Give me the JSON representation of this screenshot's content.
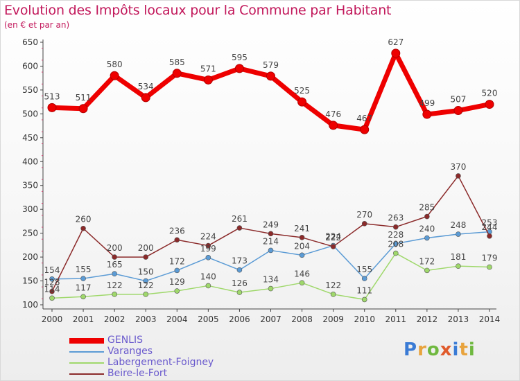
{
  "title": "Evolution des Impôts locaux pour la Commune par Habitant",
  "subtitle": "(en € et par an)",
  "logo": [
    "P",
    "r",
    "o",
    "x",
    "i",
    "t",
    "i"
  ],
  "logo_colors": [
    "#3a7bd5",
    "#e8a33d",
    "#6fb83f",
    "#e05a2b",
    "#3a7bd5",
    "#e8a33d",
    "#6fb83f"
  ],
  "chart_data": {
    "type": "line",
    "x": [
      "2000",
      "2001",
      "2002",
      "2003",
      "2004",
      "2005",
      "2006",
      "2007",
      "2008",
      "2009",
      "2010",
      "2011",
      "2012",
      "2013",
      "2014"
    ],
    "ylim": [
      100,
      650
    ],
    "yticks": [
      100,
      150,
      200,
      250,
      300,
      350,
      400,
      450,
      500,
      550,
      600,
      650
    ],
    "grid": false,
    "legend": "bottom-left",
    "series": [
      {
        "name": "GENLIS",
        "color": "#ee0000",
        "values": [
          513,
          511,
          580,
          534,
          585,
          571,
          595,
          579,
          525,
          476,
          467,
          627,
          499,
          507,
          520
        ],
        "labels": [
          "513",
          "511",
          "580",
          "534",
          "585",
          "571",
          "595",
          "579",
          "525",
          "476",
          "467",
          "627",
          "499",
          "507",
          "520"
        ]
      },
      {
        "name": "Varanges",
        "color": "#5b9bd5",
        "values": [
          154,
          155,
          165,
          150,
          172,
          199,
          173,
          214,
          204,
          224,
          155,
          228,
          240,
          248,
          253
        ],
        "labels": [
          "154",
          "155",
          "165",
          "150",
          "172",
          "199",
          "173",
          "214",
          "204",
          "224",
          "155",
          "228",
          "240",
          "248",
          "253"
        ]
      },
      {
        "name": "Labergement-Foigney",
        "color": "#9fd86b",
        "values": [
          114,
          117,
          122,
          122,
          129,
          140,
          126,
          134,
          146,
          122,
          111,
          208,
          172,
          181,
          179
        ],
        "labels": [
          "114",
          "117",
          "122",
          "122",
          "129",
          "140",
          "126",
          "134",
          "146",
          "122",
          "111",
          "208",
          "172",
          "181",
          "179"
        ]
      },
      {
        "name": "Beire-le-Fort",
        "color": "#8b2a2a",
        "values": [
          128,
          260,
          200,
          200,
          236,
          224,
          261,
          249,
          241,
          222,
          270,
          263,
          285,
          370,
          244
        ],
        "labels": [
          "128",
          "260",
          "200",
          "200",
          "236",
          "224",
          "261",
          "249",
          "241",
          "222",
          "270",
          "263",
          "285",
          "370",
          "244"
        ]
      }
    ]
  }
}
